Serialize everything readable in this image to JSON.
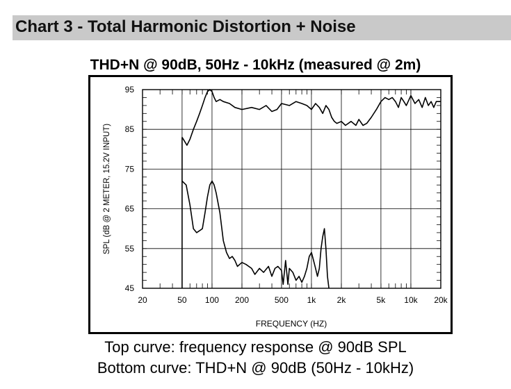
{
  "section": {
    "title": "Chart 3 - Total Harmonic Distortion + Noise"
  },
  "chart_title": "THD+N @ 90dB, 50Hz - 10kHz (measured @ 2m)",
  "captions": {
    "top": "Top curve: frequency response @ 90dB SPL",
    "bottom": "Bottom curve: THD+N @ 90dB (50Hz - 10kHz)"
  },
  "colors": {
    "banner": "#c9c9c9",
    "curve": "#000000",
    "grid": "#000000"
  },
  "chart_data": {
    "type": "line",
    "title": "",
    "xlabel": "FREQUENCY (HZ)",
    "ylabel": "SPL (dB @ 2 METER, 15.2V INPUT)",
    "xscale": "log",
    "xlim": [
      20,
      20000
    ],
    "ylim": [
      45,
      95
    ],
    "grid": true,
    "x_ticks": [
      {
        "value": 20,
        "label": "20"
      },
      {
        "value": 50,
        "label": "50"
      },
      {
        "value": 100,
        "label": "100"
      },
      {
        "value": 200,
        "label": "200"
      },
      {
        "value": 500,
        "label": "500"
      },
      {
        "value": 1000,
        "label": "1k"
      },
      {
        "value": 2000,
        "label": "2k"
      },
      {
        "value": 5000,
        "label": "5k"
      },
      {
        "value": 10000,
        "label": "10k"
      },
      {
        "value": 20000,
        "label": "20k"
      }
    ],
    "y_ticks": [
      {
        "value": 45,
        "label": "45"
      },
      {
        "value": 55,
        "label": "55"
      },
      {
        "value": 65,
        "label": "65"
      },
      {
        "value": 75,
        "label": "75"
      },
      {
        "value": 85,
        "label": "85"
      },
      {
        "value": 95,
        "label": "95"
      }
    ],
    "series": [
      {
        "points": [
          [
            50,
            83
          ],
          [
            53,
            82
          ],
          [
            56,
            81
          ],
          [
            60,
            82.5
          ],
          [
            65,
            85
          ],
          [
            70,
            87
          ],
          [
            75,
            89
          ],
          [
            80,
            91
          ],
          [
            85,
            93
          ],
          [
            90,
            94.5
          ],
          [
            95,
            95
          ],
          [
            100,
            94.5
          ],
          [
            105,
            93
          ],
          [
            110,
            92
          ],
          [
            120,
            92.5
          ],
          [
            130,
            92
          ],
          [
            150,
            91.5
          ],
          [
            170,
            90.5
          ],
          [
            200,
            90
          ],
          [
            250,
            90.5
          ],
          [
            300,
            90
          ],
          [
            350,
            91
          ],
          [
            400,
            89.5
          ],
          [
            450,
            90
          ],
          [
            500,
            91.5
          ],
          [
            600,
            91
          ],
          [
            700,
            92
          ],
          [
            800,
            91.5
          ],
          [
            900,
            91
          ],
          [
            1000,
            90
          ],
          [
            1100,
            91.5
          ],
          [
            1200,
            90.5
          ],
          [
            1300,
            89
          ],
          [
            1400,
            91
          ],
          [
            1500,
            90
          ],
          [
            1600,
            88
          ],
          [
            1700,
            87
          ],
          [
            1800,
            86.5
          ],
          [
            2000,
            87
          ],
          [
            2200,
            86
          ],
          [
            2500,
            87
          ],
          [
            2800,
            86
          ],
          [
            3000,
            87.5
          ],
          [
            3300,
            86
          ],
          [
            3600,
            86.5
          ],
          [
            4000,
            88
          ],
          [
            4500,
            90
          ],
          [
            5000,
            92
          ],
          [
            5500,
            93
          ],
          [
            6000,
            92.5
          ],
          [
            6500,
            93
          ],
          [
            7000,
            92
          ],
          [
            7500,
            90.5
          ],
          [
            8000,
            93
          ],
          [
            8500,
            92
          ],
          [
            9000,
            91
          ],
          [
            10000,
            93.5
          ],
          [
            11000,
            91.5
          ],
          [
            12000,
            92.5
          ],
          [
            13000,
            90.5
          ],
          [
            14000,
            93
          ],
          [
            15000,
            91
          ],
          [
            16000,
            92
          ],
          [
            17000,
            90.5
          ],
          [
            18000,
            92
          ],
          [
            20000,
            92
          ]
        ]
      },
      {
        "points": [
          [
            50,
            72
          ],
          [
            55,
            71
          ],
          [
            60,
            66
          ],
          [
            65,
            60
          ],
          [
            70,
            59
          ],
          [
            75,
            59.5
          ],
          [
            80,
            60
          ],
          [
            85,
            64
          ],
          [
            90,
            68
          ],
          [
            95,
            71
          ],
          [
            100,
            72
          ],
          [
            105,
            71
          ],
          [
            110,
            69
          ],
          [
            120,
            64
          ],
          [
            130,
            57
          ],
          [
            140,
            54
          ],
          [
            150,
            52.5
          ],
          [
            160,
            53
          ],
          [
            170,
            52
          ],
          [
            180,
            50.5
          ],
          [
            200,
            51.5
          ],
          [
            220,
            51
          ],
          [
            250,
            50
          ],
          [
            270,
            48.5
          ],
          [
            300,
            50
          ],
          [
            330,
            49
          ],
          [
            370,
            50.5
          ],
          [
            400,
            48
          ],
          [
            430,
            50
          ],
          [
            460,
            50.5
          ],
          [
            500,
            49.5
          ],
          [
            520,
            46
          ],
          [
            550,
            52
          ],
          [
            580,
            46
          ],
          [
            600,
            50
          ],
          [
            650,
            49
          ],
          [
            700,
            47
          ],
          [
            750,
            48
          ],
          [
            800,
            46.5
          ],
          [
            850,
            48
          ],
          [
            900,
            50
          ],
          [
            950,
            53
          ],
          [
            1000,
            54
          ],
          [
            1050,
            52
          ],
          [
            1100,
            50
          ],
          [
            1150,
            48
          ],
          [
            1200,
            50
          ],
          [
            1250,
            55
          ],
          [
            1300,
            58
          ],
          [
            1350,
            60
          ],
          [
            1400,
            55
          ],
          [
            1450,
            48
          ],
          [
            1500,
            45
          ]
        ]
      }
    ]
  }
}
